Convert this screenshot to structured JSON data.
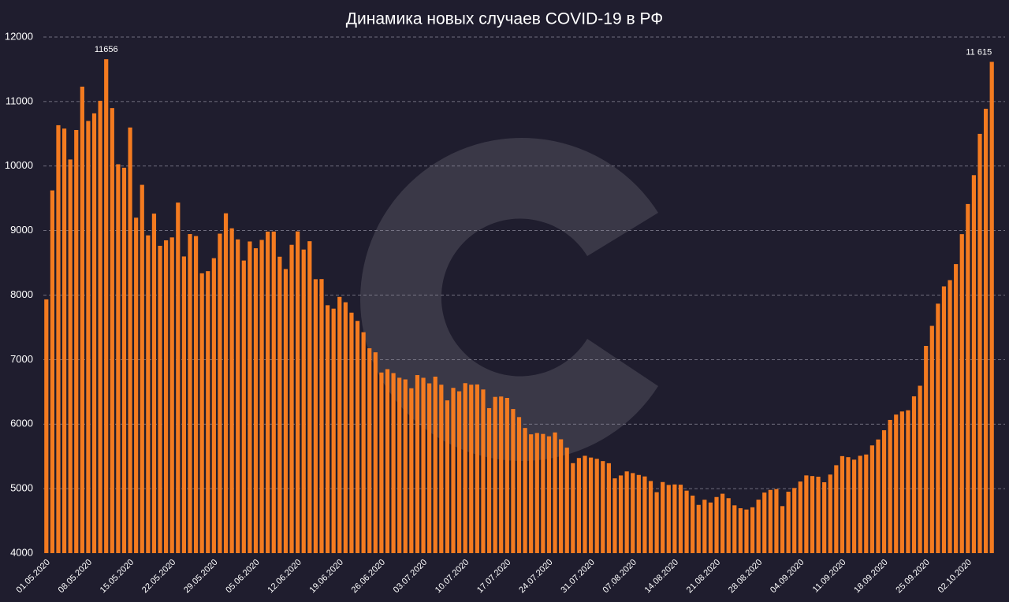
{
  "chart_data": {
    "type": "bar",
    "title": "Динамика новых случаев COVID-19 в РФ",
    "color": "#f47b20",
    "grid": true,
    "ylim": [
      4000,
      12000
    ],
    "yticks": [
      4000,
      5000,
      6000,
      7000,
      8000,
      9000,
      10000,
      11000,
      12000
    ],
    "categories": [
      "01.05.2020",
      null,
      null,
      null,
      null,
      null,
      null,
      "08.05.2020",
      null,
      null,
      null,
      null,
      null,
      null,
      "15.05.2020",
      null,
      null,
      null,
      null,
      null,
      null,
      "22.05.2020",
      null,
      null,
      null,
      null,
      null,
      null,
      "29.05.2020",
      null,
      null,
      null,
      null,
      null,
      null,
      "05.06.2020",
      null,
      null,
      null,
      null,
      null,
      null,
      "12.06.2020",
      null,
      null,
      null,
      null,
      null,
      null,
      "19.06.2020",
      null,
      null,
      null,
      null,
      null,
      null,
      "26.06.2020",
      null,
      null,
      null,
      null,
      null,
      null,
      "03.07.2020",
      null,
      null,
      null,
      null,
      null,
      null,
      "10.07.2020",
      null,
      null,
      null,
      null,
      null,
      null,
      "17.07.2020",
      null,
      null,
      null,
      null,
      null,
      null,
      "24.07.2020",
      null,
      null,
      null,
      null,
      null,
      null,
      "31.07.2020",
      null,
      null,
      null,
      null,
      null,
      null,
      "07.08.2020",
      null,
      null,
      null,
      null,
      null,
      null,
      "14.08.2020",
      null,
      null,
      null,
      null,
      null,
      null,
      "21.08.2020",
      null,
      null,
      null,
      null,
      null,
      null,
      "28.08.2020",
      null,
      null,
      null,
      null,
      null,
      null,
      "04.09.2020",
      null,
      null,
      null,
      null,
      null,
      null,
      "11.09.2020",
      null,
      null,
      null,
      null,
      null,
      null,
      "18.09.2020",
      null,
      null,
      null,
      null,
      null,
      null,
      "25.09.2020",
      null,
      null,
      null,
      null,
      null,
      null,
      "02.10.2020",
      null,
      null,
      null,
      null
    ],
    "values": [
      7933,
      9623,
      10633,
      10581,
      10102,
      10559,
      11231,
      10699,
      10817,
      11012,
      11656,
      10899,
      10028,
      9974,
      10598,
      9200,
      9709,
      8926,
      9263,
      8764,
      8849,
      8894,
      9434,
      8599,
      8946,
      8915,
      8338,
      8371,
      8572,
      8952,
      9268,
      9035,
      8863,
      8536,
      8831,
      8726,
      8855,
      8984,
      8985,
      8595,
      8404,
      8779,
      8987,
      8706,
      8835,
      8246,
      8248,
      7843,
      7790,
      7972,
      7889,
      7728,
      7600,
      7425,
      7176,
      7113,
      6800,
      6852,
      6791,
      6719,
      6693,
      6556,
      6760,
      6718,
      6632,
      6736,
      6611,
      6368,
      6562,
      6509,
      6635,
      6611,
      6615,
      6537,
      6248,
      6422,
      6428,
      6406,
      6234,
      6109,
      5940,
      5842,
      5862,
      5848,
      5811,
      5871,
      5765,
      5635,
      5395,
      5475,
      5509,
      5482,
      5462,
      5427,
      5394,
      5159,
      5204,
      5267,
      5241,
      5212,
      5189,
      5118,
      4945,
      5102,
      5057,
      5065,
      5061,
      4969,
      4892,
      4748,
      4828,
      4785,
      4870,
      4921,
      4852,
      4741,
      4696,
      4676,
      4711,
      4829,
      4939,
      4980,
      4993,
      4729,
      4952,
      5010,
      5110,
      5205,
      5195,
      5185,
      5099,
      5218,
      5363,
      5504,
      5488,
      5449,
      5509,
      5529,
      5670,
      5762,
      5905,
      6065,
      6148,
      6196,
      6215,
      6431,
      6595,
      7212,
      7523,
      7867,
      8135,
      8232,
      8481,
      8945,
      9412,
      9859,
      10499,
      10888,
      11615
    ],
    "value_labels": [
      null,
      null,
      null,
      null,
      null,
      null,
      null,
      null,
      null,
      null,
      "11656",
      null,
      null,
      null,
      null,
      null,
      null,
      null,
      null,
      null,
      null,
      null,
      null,
      null,
      null,
      null,
      null,
      null,
      null,
      null,
      null,
      null,
      null,
      null,
      null,
      null,
      null,
      null,
      null,
      null,
      null,
      null,
      null,
      null,
      null,
      null,
      null,
      null,
      null,
      null,
      null,
      null,
      null,
      null,
      null,
      null,
      null,
      null,
      null,
      null,
      null,
      null,
      null,
      null,
      null,
      null,
      null,
      null,
      null,
      null,
      null,
      null,
      null,
      null,
      null,
      null,
      null,
      null,
      null,
      null,
      null,
      null,
      null,
      null,
      null,
      null,
      null,
      null,
      null,
      null,
      null,
      null,
      null,
      null,
      null,
      null,
      null,
      null,
      null,
      null,
      null,
      null,
      null,
      null,
      null,
      null,
      null,
      null,
      null,
      null,
      null,
      null,
      null,
      null,
      null,
      null,
      null,
      null,
      null,
      null,
      null,
      null,
      null,
      null,
      null,
      null,
      null,
      null,
      null,
      null,
      null,
      null,
      null,
      null,
      null,
      null,
      null,
      null,
      null,
      null,
      null,
      null,
      null,
      null,
      null,
      null,
      null,
      null,
      null,
      null,
      null,
      null,
      null,
      null,
      null,
      null,
      null,
      null,
      "11 615"
    ]
  }
}
